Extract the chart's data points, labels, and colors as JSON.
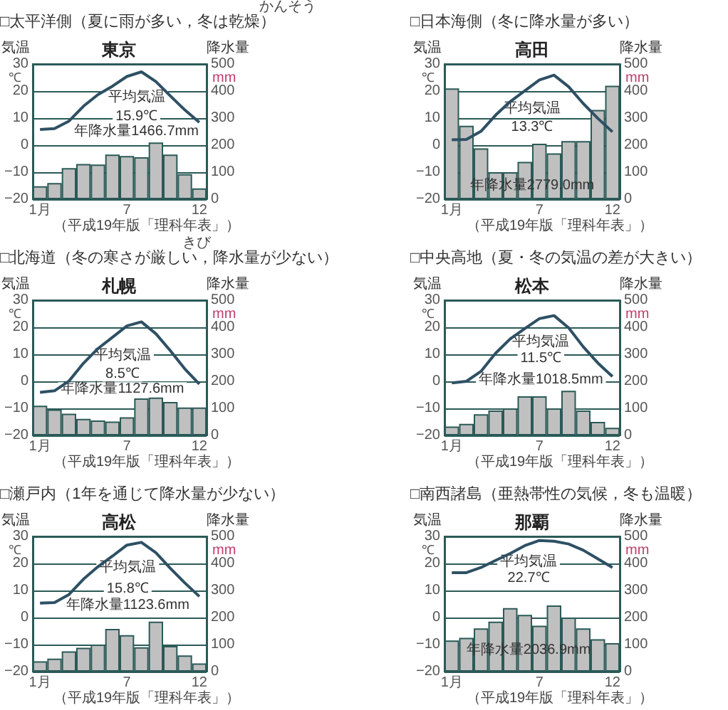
{
  "chart_data": [
    {
      "type": "bar",
      "title": "□太平洋側（夏に雨が多い，冬は乾燥）",
      "subtitle": "東京",
      "ylabel": "気温",
      "y2label": "降水量",
      "categories": [
        "1月",
        null,
        null,
        null,
        null,
        null,
        "7",
        null,
        null,
        null,
        null,
        "12"
      ],
      "series": [
        {
          "axis": "y2",
          "color": "#c0c0c0",
          "values": [
            48,
            60,
            115,
            130,
            128,
            165,
            160,
            155,
            210,
            165,
            93,
            40
          ]
        },
        {
          "type": "line",
          "color": "#2e5064",
          "values": [
            5.8,
            6.1,
            8.9,
            14.4,
            18.7,
            21.8,
            25.4,
            27.1,
            23.5,
            18.2,
            13.0,
            8.4
          ]
        }
      ],
      "ylim": [
        -20,
        30
      ],
      "yticks": [
        -20,
        -10,
        0,
        10,
        20,
        30
      ],
      "y2lim": [
        0,
        500
      ],
      "y2ticks": [
        0,
        100,
        200,
        300,
        400,
        500
      ],
      "grid": "y",
      "annotations": [
        "平均気温",
        "15.9℃",
        "年降水量1466.7mm",
        "（平成19年版「理科年表」）",
        "℃",
        "mm",
        "かんそう"
      ]
    },
    {
      "type": "bar",
      "title": "□日本海側（冬に降水量が多い）",
      "subtitle": "高田",
      "ylabel": "気温",
      "y2label": "降水量",
      "categories": [
        "1月",
        null,
        null,
        null,
        null,
        null,
        "7",
        null,
        null,
        null,
        null,
        "12"
      ],
      "series": [
        {
          "axis": "y2",
          "color": "#c0c0c0",
          "values": [
            410,
            272,
            188,
            100,
            100,
            138,
            205,
            170,
            215,
            215,
            330,
            420
          ]
        },
        {
          "type": "line",
          "color": "#2e5064",
          "values": [
            2.0,
            2.1,
            5.1,
            11.1,
            16.1,
            20.1,
            24.1,
            25.9,
            21.6,
            15.4,
            9.9,
            4.9
          ]
        }
      ],
      "ylim": [
        -20,
        30
      ],
      "yticks": [
        -20,
        -10,
        0,
        10,
        20,
        30
      ],
      "y2lim": [
        0,
        500
      ],
      "y2ticks": [
        0,
        100,
        200,
        300,
        400,
        500
      ],
      "grid": "y",
      "annotations": [
        "平均気温",
        "13.3℃",
        "年降水量2779.0mm",
        "（平成19年版「理科年表」）",
        "℃",
        "mm"
      ]
    },
    {
      "type": "bar",
      "title": "□北海道（冬の寒さが厳しい，降水量が少ない）",
      "subtitle": "札幌",
      "ylabel": "気温",
      "y2label": "降水量",
      "categories": [
        "1月",
        null,
        null,
        null,
        null,
        null,
        "7",
        null,
        null,
        null,
        null,
        "12"
      ],
      "series": [
        {
          "axis": "y2",
          "color": "#c0c0c0",
          "values": [
            110,
            96,
            80,
            61,
            55,
            51,
            67,
            137,
            140,
            124,
            103,
            103
          ]
        },
        {
          "type": "line",
          "color": "#2e5064",
          "values": [
            -4.1,
            -3.5,
            0.1,
            6.7,
            12.1,
            16.3,
            20.5,
            22.0,
            17.6,
            11.3,
            4.6,
            -1.0
          ]
        }
      ],
      "ylim": [
        -20,
        30
      ],
      "yticks": [
        -20,
        -10,
        0,
        10,
        20,
        30
      ],
      "y2lim": [
        0,
        500
      ],
      "y2ticks": [
        0,
        100,
        200,
        300,
        400,
        500
      ],
      "grid": "y",
      "annotations": [
        "平均気温",
        "8.5℃",
        "年降水量1127.6mm",
        "（平成19年版「理科年表」）",
        "℃",
        "mm",
        "きび"
      ]
    },
    {
      "type": "bar",
      "title": "□中央高地（夏・冬の気温の差が大きい）",
      "subtitle": "松本",
      "ylabel": "気温",
      "y2label": "降水量",
      "categories": [
        "1月",
        null,
        null,
        null,
        null,
        null,
        "7",
        null,
        null,
        null,
        null,
        "12"
      ],
      "series": [
        {
          "axis": "y2",
          "color": "#c0c0c0",
          "values": [
            33,
            43,
            78,
            92,
            100,
            145,
            145,
            100,
            165,
            92,
            50,
            28
          ]
        },
        {
          "type": "line",
          "color": "#2e5064",
          "values": [
            -0.6,
            0.0,
            3.7,
            10.4,
            15.7,
            19.5,
            23.2,
            24.3,
            19.8,
            12.8,
            6.8,
            1.8
          ]
        }
      ],
      "ylim": [
        -20,
        30
      ],
      "yticks": [
        -20,
        -10,
        0,
        10,
        20,
        30
      ],
      "y2lim": [
        0,
        500
      ],
      "y2ticks": [
        0,
        100,
        200,
        300,
        400,
        500
      ],
      "grid": "y",
      "annotations": [
        "平均気温",
        "11.5℃",
        "年降水量1018.5mm",
        "（平成19年版「理科年表」）",
        "℃",
        "mm"
      ]
    },
    {
      "type": "bar",
      "title": "□瀬戸内（1年を通じて降水量が少ない）",
      "subtitle": "高松",
      "ylabel": "気温",
      "y2label": "降水量",
      "categories": [
        "1月",
        null,
        null,
        null,
        null,
        null,
        "7",
        null,
        null,
        null,
        null,
        "12"
      ],
      "series": [
        {
          "axis": "y2",
          "color": "#c0c0c0",
          "values": [
            38,
            48,
            75,
            88,
            100,
            158,
            135,
            90,
            185,
            95,
            60,
            30
          ]
        },
        {
          "type": "line",
          "color": "#2e5064",
          "values": [
            5.3,
            5.5,
            8.5,
            14.2,
            18.8,
            22.7,
            26.8,
            27.8,
            24.0,
            18.2,
            12.8,
            7.8
          ]
        }
      ],
      "ylim": [
        -20,
        30
      ],
      "yticks": [
        -20,
        -10,
        0,
        10,
        20,
        30
      ],
      "y2lim": [
        0,
        500
      ],
      "y2ticks": [
        0,
        100,
        200,
        300,
        400,
        500
      ],
      "grid": "y",
      "annotations": [
        "平均気温",
        "15.8℃",
        "年降水量1123.6mm",
        "（平成19年版「理科年表」）",
        "℃",
        "mm"
      ]
    },
    {
      "type": "bar",
      "title": "□南西諸島（亜熱帯性の気候，冬も温暖）",
      "subtitle": "那覇",
      "ylabel": "気温",
      "y2label": "降水量",
      "categories": [
        "1月",
        null,
        null,
        null,
        null,
        null,
        "7",
        null,
        null,
        null,
        null,
        "12"
      ],
      "series": [
        {
          "axis": "y2",
          "color": "#c0c0c0",
          "values": [
            115,
            125,
            160,
            185,
            235,
            210,
            170,
            245,
            200,
            160,
            120,
            105
          ]
        },
        {
          "type": "line",
          "color": "#2e5064",
          "values": [
            16.6,
            16.6,
            18.5,
            21.1,
            23.7,
            26.6,
            28.5,
            28.2,
            27.2,
            24.9,
            21.7,
            18.5
          ]
        }
      ],
      "ylim": [
        -20,
        30
      ],
      "yticks": [
        -20,
        -10,
        0,
        10,
        20,
        30
      ],
      "y2lim": [
        0,
        500
      ],
      "y2ticks": [
        0,
        100,
        200,
        300,
        400,
        500
      ],
      "grid": "y",
      "annotations": [
        "平均気温",
        "22.7℃",
        "年降水量2036.9mm",
        "（平成19年版「理科年表」）",
        "℃",
        "mm"
      ]
    }
  ]
}
